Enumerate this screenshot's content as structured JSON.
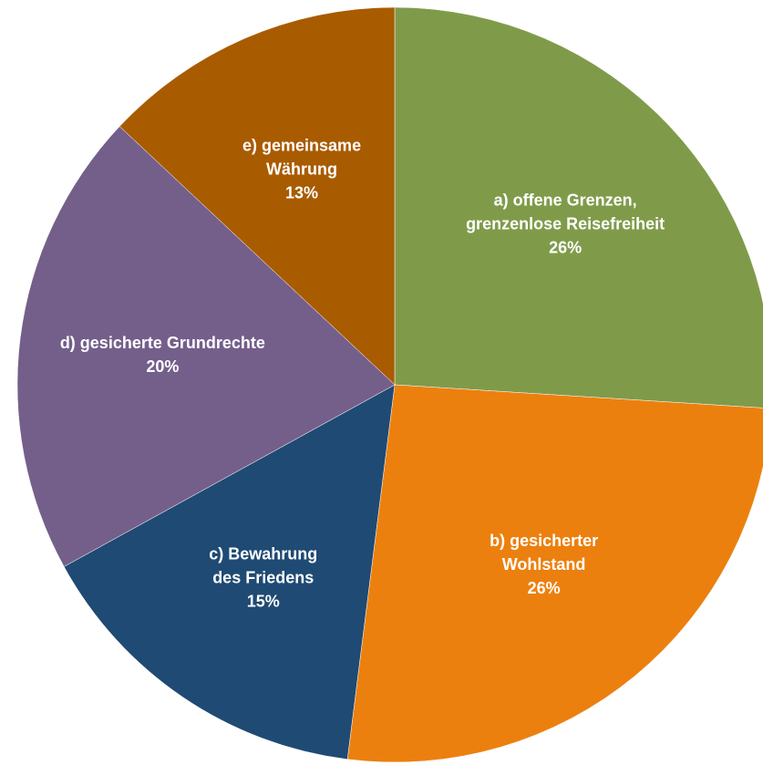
{
  "chart_data": {
    "type": "pie",
    "categories": [
      "a) offene Grenzen,\ngrenzenlose Reisefreiheit",
      "b) gesicherter\nWohlstand",
      "c) Bewahrung\ndes Friedens",
      "d)  gesicherte Grundrechte",
      "e)  gemeinsame\nWährung"
    ],
    "values": [
      26,
      26,
      15,
      20,
      13
    ],
    "value_labels": [
      "26%",
      "26%",
      "15%",
      "20%",
      "13%"
    ],
    "colors": [
      "#7f9b4a",
      "#ec800e",
      "#1f4a73",
      "#745f8b",
      "#a95b00"
    ]
  }
}
